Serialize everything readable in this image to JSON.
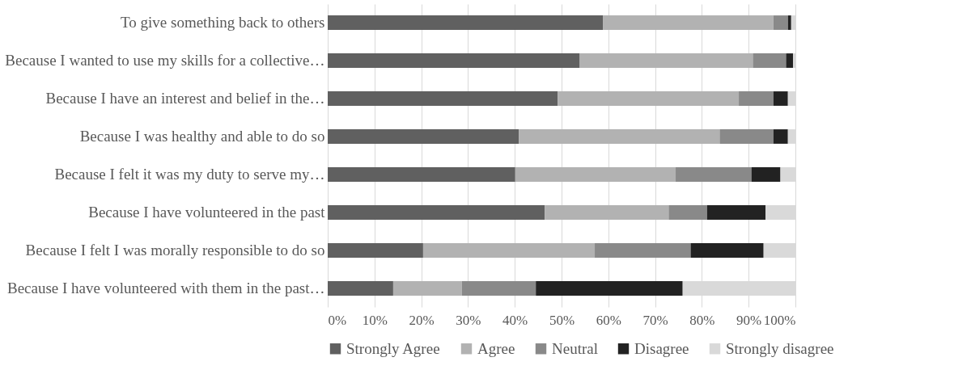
{
  "chart_data": {
    "type": "bar",
    "orientation": "horizontal",
    "stacked": true,
    "categories": [
      "To give something back to others",
      "Because I wanted to use my skills for a collective…",
      "Because I have an interest and belief in the…",
      "Because I was healthy and able to do so",
      "Because I felt it was my duty to serve my…",
      "Because I have volunteered in the past",
      "Because I felt I was morally responsible to do so",
      "Because I have volunteered with them in the past…"
    ],
    "series": [
      {
        "name": "Strongly Agree",
        "color": "#606060",
        "values": [
          58.9,
          53.9,
          49.2,
          40.9,
          40.1,
          46.4,
          20.4,
          14.0
        ]
      },
      {
        "name": "Agree",
        "color": "#b2b2b2",
        "values": [
          36.4,
          37.0,
          38.7,
          42.9,
          34.3,
          26.5,
          36.7,
          14.7
        ]
      },
      {
        "name": "Neutral",
        "color": "#898989",
        "values": [
          3.1,
          7.1,
          7.4,
          11.5,
          16.2,
          8.2,
          20.5,
          15.8
        ]
      },
      {
        "name": "Disagree",
        "color": "#222222",
        "values": [
          0.7,
          1.5,
          3.1,
          3.1,
          6.2,
          12.5,
          15.6,
          31.4
        ]
      },
      {
        "name": "Strongly disagree",
        "color": "#d9d9d9",
        "values": [
          0.9,
          0.5,
          1.6,
          1.6,
          3.2,
          6.4,
          6.8,
          24.1
        ]
      }
    ],
    "xlim": [
      0,
      100
    ],
    "xticks": [
      {
        "value": 0,
        "label": "0%"
      },
      {
        "value": 10,
        "label": "10%"
      },
      {
        "value": 20,
        "label": "20%"
      },
      {
        "value": 30,
        "label": "30%"
      },
      {
        "value": 40,
        "label": "40%"
      },
      {
        "value": 50,
        "label": "50%"
      },
      {
        "value": 60,
        "label": "60%"
      },
      {
        "value": 70,
        "label": "70%"
      },
      {
        "value": 80,
        "label": "80%"
      },
      {
        "value": 90,
        "label": "90%"
      },
      {
        "value": 100,
        "label": "100%"
      }
    ],
    "grid": "x",
    "legend": "bottom"
  }
}
